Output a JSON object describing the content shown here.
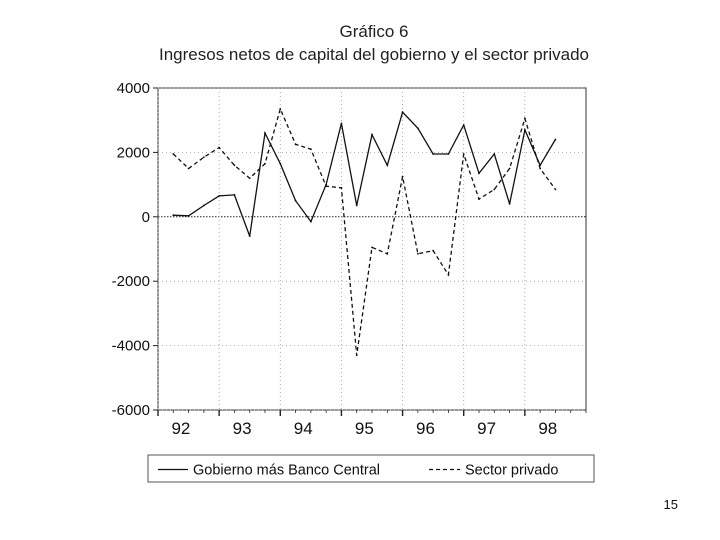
{
  "page": {
    "number": "15"
  },
  "chart_data": {
    "type": "line",
    "title": "Gráfico 6",
    "subtitle": "Ingresos netos de capital del gobierno y el sector privado",
    "xlabel": "",
    "ylabel": "",
    "categories": [
      "92",
      "93",
      "94",
      "95",
      "96",
      "97",
      "98"
    ],
    "ylim": [
      -6000,
      4000
    ],
    "yticks": [
      4000,
      2000,
      0,
      -2000,
      -4000,
      -6000
    ],
    "ytick_labels": [
      "4000",
      "2000",
      "0",
      "-2000",
      "-4000",
      "-6000"
    ],
    "grid": "dotted",
    "zero_line": true,
    "legend_position": "bottom",
    "series": [
      {
        "name": "Gobierno más Banco Central",
        "style": "solid",
        "color": "#111111",
        "points": [
          [
            92.0,
            50
          ],
          [
            92.25,
            30
          ],
          [
            92.5,
            350
          ],
          [
            92.75,
            650
          ],
          [
            93.0,
            680
          ],
          [
            93.25,
            -600
          ],
          [
            93.5,
            2600
          ],
          [
            93.75,
            1650
          ],
          [
            94.0,
            500
          ],
          [
            94.25,
            -150
          ],
          [
            94.5,
            1000
          ],
          [
            94.75,
            2900
          ],
          [
            95.0,
            350
          ],
          [
            95.25,
            2550
          ],
          [
            95.5,
            1600
          ],
          [
            95.75,
            3250
          ],
          [
            96.0,
            2750
          ],
          [
            96.25,
            1950
          ],
          [
            96.5,
            1950
          ],
          [
            96.75,
            2850
          ],
          [
            97.0,
            1350
          ],
          [
            97.25,
            1950
          ],
          [
            97.5,
            400
          ],
          [
            97.75,
            2700
          ],
          [
            98.0,
            1600
          ],
          [
            98.25,
            2400
          ]
        ]
      },
      {
        "name": "Sector privado",
        "style": "dashed",
        "color": "#111111",
        "points": [
          [
            92.0,
            1950
          ],
          [
            92.25,
            1500
          ],
          [
            92.5,
            1850
          ],
          [
            92.75,
            2150
          ],
          [
            93.0,
            1600
          ],
          [
            93.25,
            1200
          ],
          [
            93.5,
            1650
          ],
          [
            93.75,
            3350
          ],
          [
            94.0,
            2250
          ],
          [
            94.25,
            2100
          ],
          [
            94.5,
            950
          ],
          [
            94.75,
            900
          ],
          [
            95.0,
            -4300
          ],
          [
            95.25,
            -950
          ],
          [
            95.5,
            -1150
          ],
          [
            95.75,
            1250
          ],
          [
            96.0,
            -1150
          ],
          [
            96.25,
            -1050
          ],
          [
            96.5,
            -1800
          ],
          [
            96.75,
            1950
          ],
          [
            97.0,
            550
          ],
          [
            97.25,
            850
          ],
          [
            97.5,
            1500
          ],
          [
            97.75,
            3050
          ],
          [
            98.0,
            1500
          ],
          [
            98.25,
            850
          ]
        ]
      }
    ]
  }
}
